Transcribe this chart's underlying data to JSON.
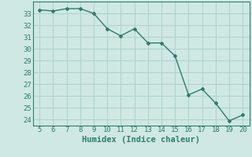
{
  "x": [
    5,
    6,
    7,
    8,
    9,
    10,
    11,
    12,
    13,
    14,
    15,
    16,
    17,
    18,
    19,
    20
  ],
  "y": [
    33.3,
    33.2,
    33.4,
    33.4,
    33.0,
    31.7,
    31.1,
    31.7,
    30.5,
    30.5,
    29.4,
    26.1,
    26.6,
    25.4,
    23.9,
    24.4
  ],
  "line_color": "#2e7d6e",
  "marker": "D",
  "marker_size": 2.0,
  "bg_color": "#cfe8e4",
  "grid_color": "#b0d4cf",
  "xlabel": "Humidex (Indice chaleur)",
  "xlim": [
    4.5,
    20.5
  ],
  "ylim": [
    23.5,
    34.0
  ],
  "yticks": [
    24,
    25,
    26,
    27,
    28,
    29,
    30,
    31,
    32,
    33
  ],
  "xticks": [
    5,
    6,
    7,
    8,
    9,
    10,
    11,
    12,
    13,
    14,
    15,
    16,
    17,
    18,
    19,
    20
  ],
  "tick_fontsize": 6.5,
  "xlabel_fontsize": 7.5,
  "line_width": 1.0
}
